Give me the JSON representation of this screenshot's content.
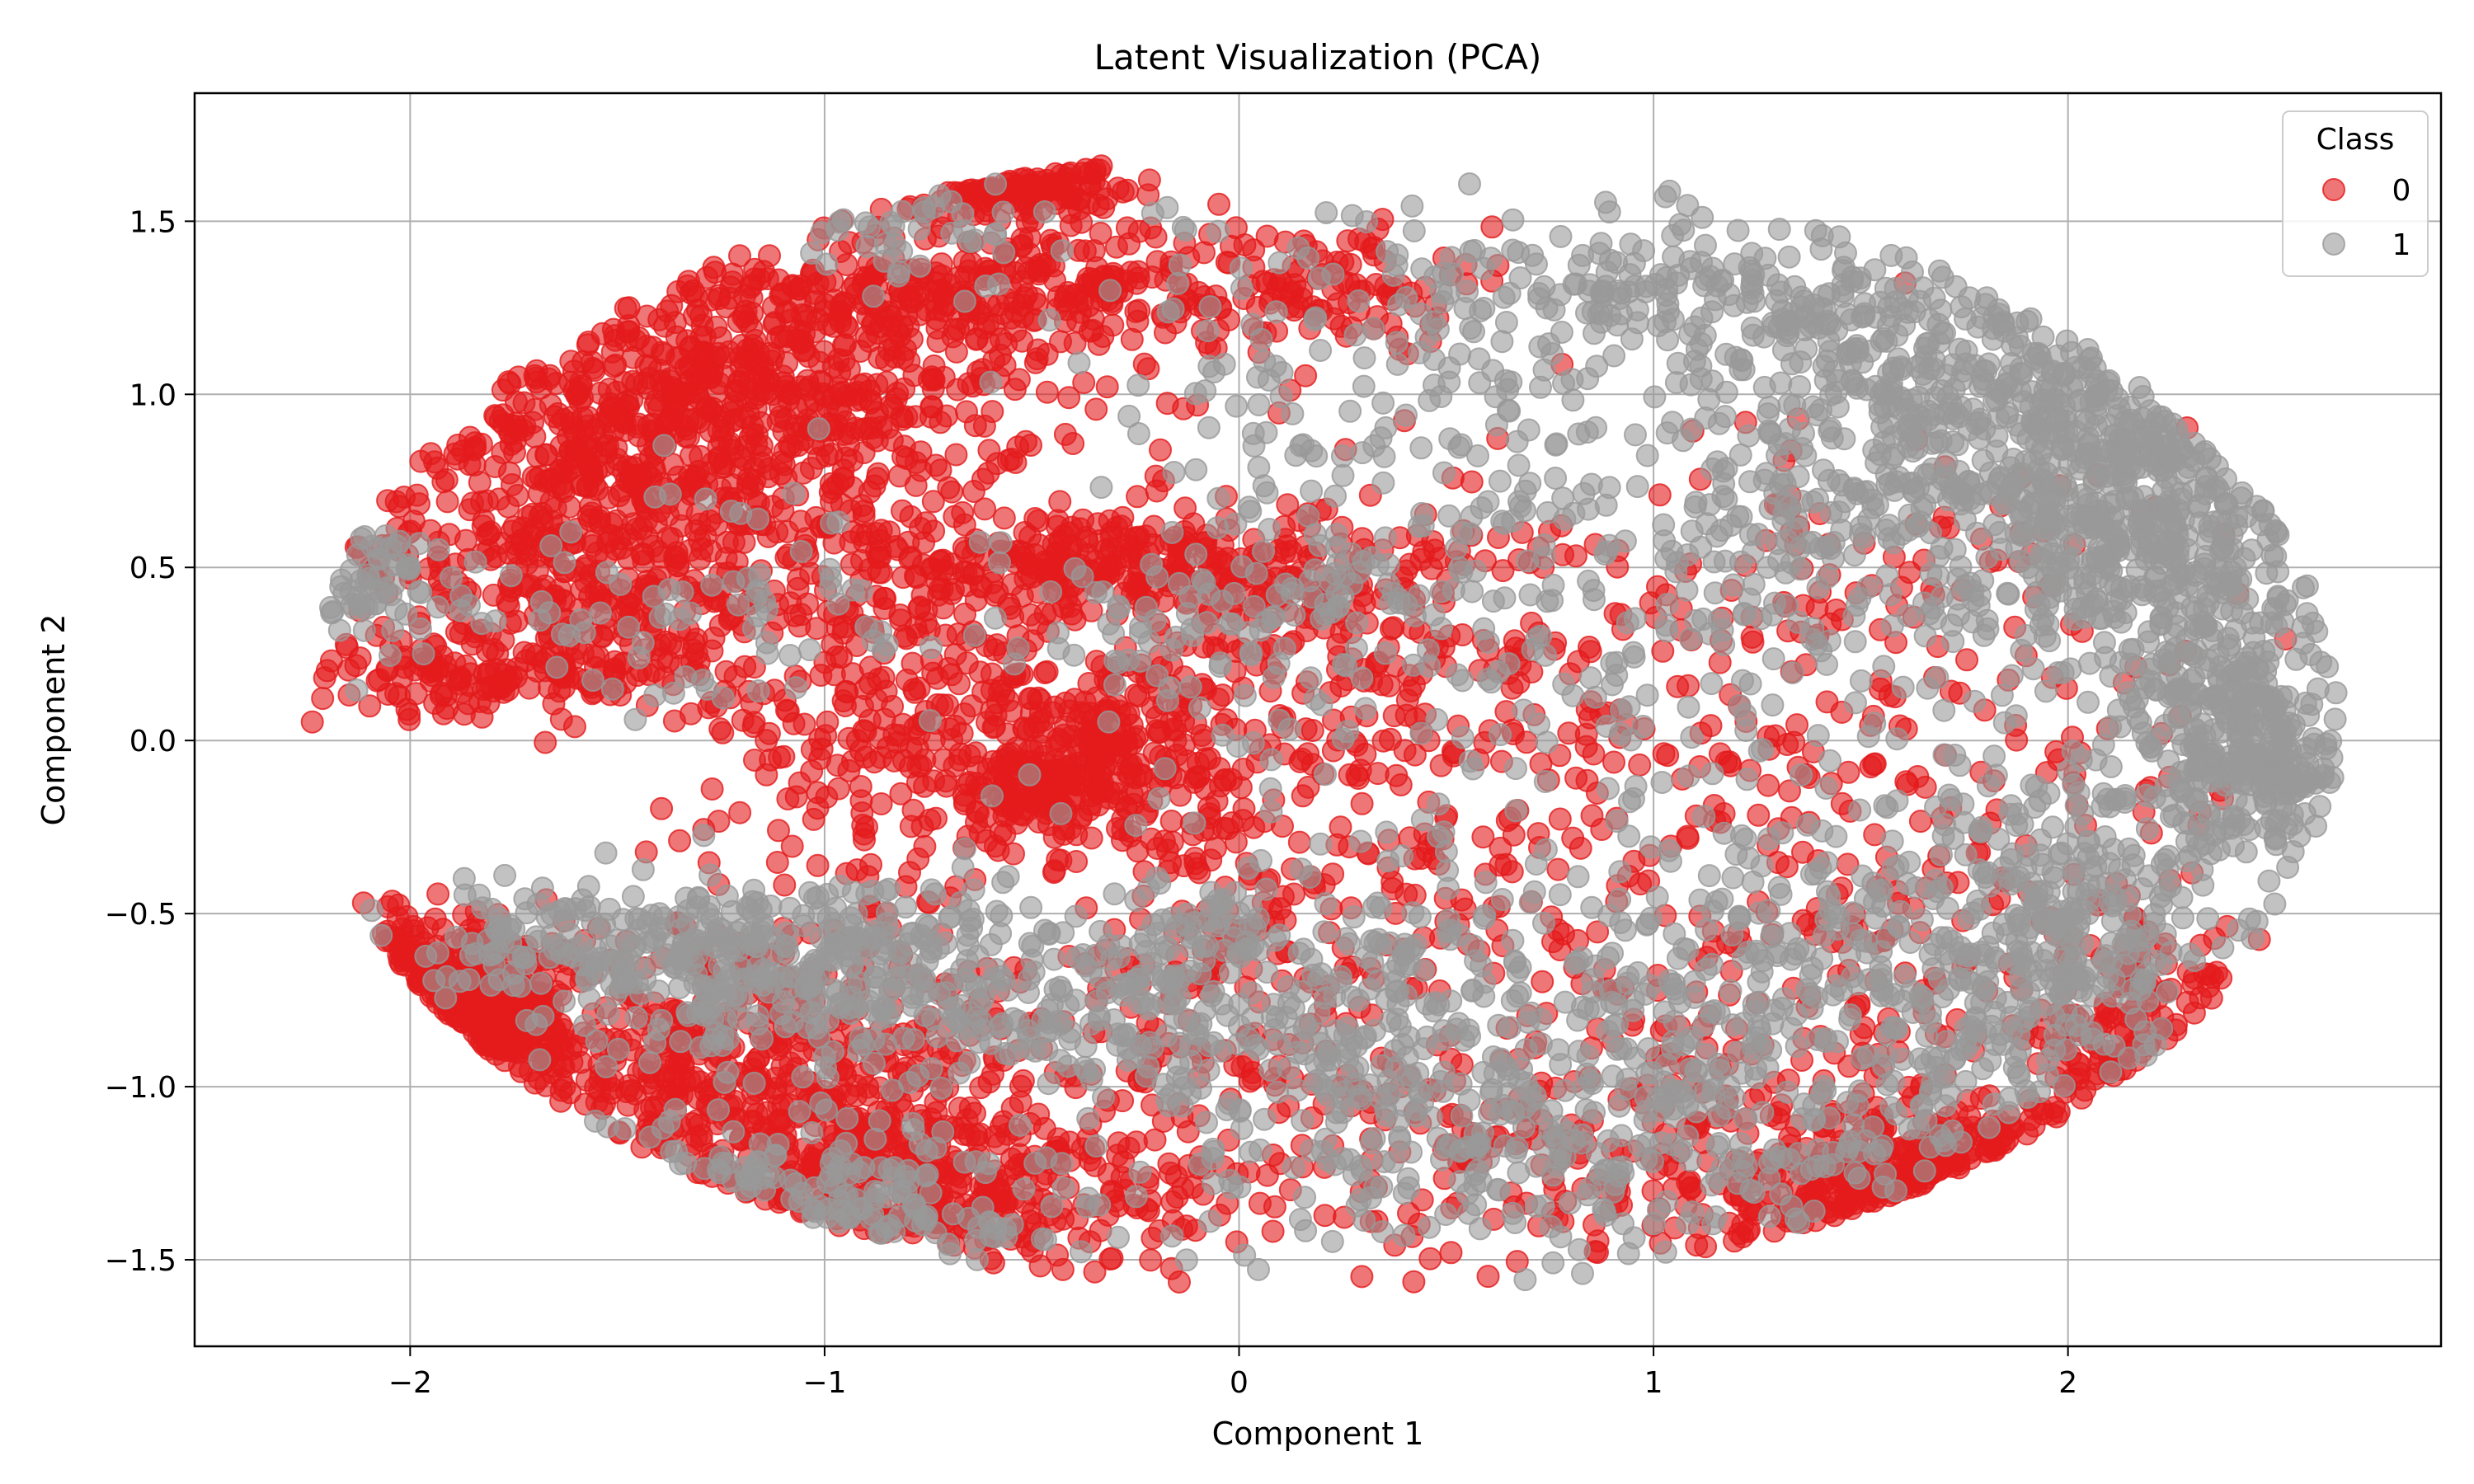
{
  "chart_data": {
    "type": "scatter",
    "title": "Latent Visualization (PCA)",
    "xlabel": "Component 1",
    "ylabel": "Component 2",
    "xlim": [
      -2.52,
      2.9
    ],
    "ylim": [
      -1.75,
      1.87
    ],
    "xticks": [
      -2,
      -1,
      0,
      1,
      2
    ],
    "xtick_labels": [
      "−2",
      "−1",
      "0",
      "1",
      "2"
    ],
    "yticks": [
      -1.5,
      -1.0,
      -0.5,
      0.0,
      0.5,
      1.0,
      1.5
    ],
    "ytick_labels": [
      "−1.5",
      "−1.0",
      "−0.5",
      "0.0",
      "0.5",
      "1.0",
      "1.5"
    ],
    "grid": true,
    "legend": {
      "title": "Class",
      "placement": "top-right",
      "entries": [
        "0",
        "1"
      ]
    },
    "marker_opacity": 0.6,
    "series": [
      {
        "name": "0",
        "color": "#e41a1c",
        "clusters": [
          {
            "cx": -1.3,
            "cy": 1.0,
            "sx": 0.4,
            "sy": 0.22,
            "n": 700
          },
          {
            "cx": -1.6,
            "cy": 0.55,
            "sx": 0.3,
            "sy": 0.18,
            "n": 350
          },
          {
            "cx": -1.8,
            "cy": 0.2,
            "sx": 0.25,
            "sy": 0.06,
            "n": 150
          },
          {
            "cx": -0.5,
            "cy": 1.3,
            "sx": 0.3,
            "sy": 0.1,
            "n": 260
          },
          {
            "cx": -0.6,
            "cy": 1.62,
            "sx": 0.15,
            "sy": 0.05,
            "n": 120
          },
          {
            "cx": -0.3,
            "cy": 0.5,
            "sx": 0.3,
            "sy": 0.08,
            "n": 250
          },
          {
            "cx": -0.4,
            "cy": 0.0,
            "sx": 0.3,
            "sy": 0.12,
            "n": 250
          },
          {
            "cx": -0.45,
            "cy": -0.15,
            "sx": 0.15,
            "sy": 0.08,
            "n": 150
          },
          {
            "cx": -0.9,
            "cy": 0.3,
            "sx": 0.35,
            "sy": 0.35,
            "n": 300
          },
          {
            "cx": -2.0,
            "cy": -0.8,
            "sx": 0.18,
            "sy": 0.12,
            "n": 350
          },
          {
            "cx": -1.2,
            "cy": -1.0,
            "sx": 0.4,
            "sy": 0.25,
            "n": 600
          },
          {
            "cx": -0.8,
            "cy": -1.3,
            "sx": 0.35,
            "sy": 0.15,
            "n": 300
          },
          {
            "cx": 0.2,
            "cy": 1.3,
            "sx": 0.15,
            "sy": 0.1,
            "n": 100
          },
          {
            "cx": 0.2,
            "cy": 0.4,
            "sx": 0.3,
            "sy": 0.15,
            "n": 150
          },
          {
            "cx": 0.7,
            "cy": -0.2,
            "sx": 0.7,
            "sy": 0.5,
            "n": 350
          },
          {
            "cx": 0.8,
            "cy": -1.2,
            "sx": 0.6,
            "sy": 0.2,
            "n": 250
          },
          {
            "cx": 1.6,
            "cy": 0.2,
            "sx": 0.5,
            "sy": 0.4,
            "n": 150
          },
          {
            "cx": 1.9,
            "cy": -1.35,
            "sx": 0.3,
            "sy": 0.12,
            "n": 250
          },
          {
            "cx": 2.2,
            "cy": -0.95,
            "sx": 0.15,
            "sy": 0.2,
            "n": 120
          },
          {
            "cx": 1.5,
            "cy": -0.7,
            "sx": 0.5,
            "sy": 0.3,
            "n": 120
          },
          {
            "cx": 0.0,
            "cy": -0.6,
            "sx": 0.25,
            "sy": 0.3,
            "n": 150
          }
        ]
      },
      {
        "name": "1",
        "color": "#999999",
        "clusters": [
          {
            "cx": 1.9,
            "cy": 0.95,
            "sx": 0.4,
            "sy": 0.2,
            "n": 500
          },
          {
            "cx": 2.2,
            "cy": 0.6,
            "sx": 0.25,
            "sy": 0.2,
            "n": 350
          },
          {
            "cx": 2.4,
            "cy": 0.1,
            "sx": 0.15,
            "sy": 0.2,
            "n": 250
          },
          {
            "cx": 2.5,
            "cy": -0.1,
            "sx": 0.12,
            "sy": 0.08,
            "n": 120
          },
          {
            "cx": 1.2,
            "cy": 1.3,
            "sx": 0.4,
            "sy": 0.12,
            "n": 200
          },
          {
            "cx": 1.2,
            "cy": 0.4,
            "sx": 0.6,
            "sy": 0.3,
            "n": 300
          },
          {
            "cx": 1.6,
            "cy": -0.7,
            "sx": 0.5,
            "sy": 0.25,
            "n": 400
          },
          {
            "cx": 2.0,
            "cy": -0.5,
            "sx": 0.2,
            "sy": 0.2,
            "n": 200
          },
          {
            "cx": 1.0,
            "cy": -1.2,
            "sx": 0.5,
            "sy": 0.2,
            "n": 250
          },
          {
            "cx": 0.3,
            "cy": -0.8,
            "sx": 0.4,
            "sy": 0.3,
            "n": 300
          },
          {
            "cx": -0.4,
            "cy": -0.7,
            "sx": 0.4,
            "sy": 0.15,
            "n": 250
          },
          {
            "cx": -1.0,
            "cy": -0.7,
            "sx": 0.3,
            "sy": 0.15,
            "n": 200
          },
          {
            "cx": -1.5,
            "cy": -0.6,
            "sx": 0.3,
            "sy": 0.1,
            "n": 200
          },
          {
            "cx": -1.2,
            "cy": -1.35,
            "sx": 0.4,
            "sy": 0.12,
            "n": 150
          },
          {
            "cx": -2.1,
            "cy": 0.45,
            "sx": 0.1,
            "sy": 0.1,
            "n": 60
          },
          {
            "cx": 0.4,
            "cy": 1.0,
            "sx": 0.4,
            "sy": 0.3,
            "n": 150
          },
          {
            "cx": 0.0,
            "cy": 0.3,
            "sx": 0.3,
            "sy": 0.2,
            "n": 120
          },
          {
            "cx": -0.8,
            "cy": 1.5,
            "sx": 0.2,
            "sy": 0.08,
            "n": 40
          },
          {
            "cx": -1.3,
            "cy": 0.4,
            "sx": 0.3,
            "sy": 0.2,
            "n": 80
          }
        ]
      }
    ]
  }
}
